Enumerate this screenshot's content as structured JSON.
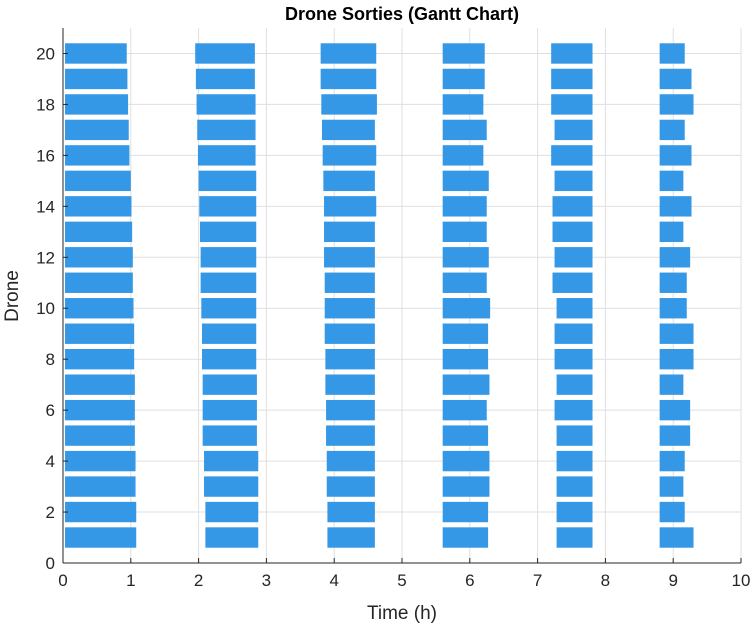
{
  "chart_data": {
    "type": "bar",
    "orientation": "horizontal-gantt",
    "title": "Drone Sorties (Gantt Chart)",
    "xlabel": "Time (h)",
    "ylabel": "Drone",
    "xlim": [
      0,
      10
    ],
    "ylim": [
      0,
      21
    ],
    "xticks": [
      0,
      1,
      2,
      3,
      4,
      5,
      6,
      7,
      8,
      9,
      10
    ],
    "yticks": [
      0,
      2,
      4,
      6,
      8,
      10,
      12,
      14,
      16,
      18,
      20
    ],
    "grid": true,
    "bar_color": "#3598e6",
    "drones": [
      {
        "drone": 1,
        "sorties": [
          [
            0.03,
            1.08
          ],
          [
            2.1,
            2.88
          ],
          [
            3.9,
            4.6
          ],
          [
            5.6,
            6.27
          ],
          [
            7.28,
            7.81
          ],
          [
            8.8,
            9.3
          ]
        ]
      },
      {
        "drone": 2,
        "sorties": [
          [
            0.03,
            1.08
          ],
          [
            2.1,
            2.88
          ],
          [
            3.9,
            4.6
          ],
          [
            5.6,
            6.27
          ],
          [
            7.28,
            7.81
          ],
          [
            8.8,
            9.17
          ]
        ]
      },
      {
        "drone": 3,
        "sorties": [
          [
            0.03,
            1.07
          ],
          [
            2.08,
            2.88
          ],
          [
            3.89,
            4.6
          ],
          [
            5.6,
            6.29
          ],
          [
            7.28,
            7.81
          ],
          [
            8.8,
            9.15
          ]
        ]
      },
      {
        "drone": 4,
        "sorties": [
          [
            0.03,
            1.07
          ],
          [
            2.08,
            2.88
          ],
          [
            3.89,
            4.6
          ],
          [
            5.6,
            6.29
          ],
          [
            7.28,
            7.81
          ],
          [
            8.8,
            9.17
          ]
        ]
      },
      {
        "drone": 5,
        "sorties": [
          [
            0.03,
            1.06
          ],
          [
            2.06,
            2.86
          ],
          [
            3.88,
            4.6
          ],
          [
            5.6,
            6.27
          ],
          [
            7.28,
            7.81
          ],
          [
            8.8,
            9.25
          ]
        ]
      },
      {
        "drone": 6,
        "sorties": [
          [
            0.03,
            1.06
          ],
          [
            2.06,
            2.86
          ],
          [
            3.88,
            4.6
          ],
          [
            5.6,
            6.25
          ],
          [
            7.25,
            7.81
          ],
          [
            8.8,
            9.25
          ]
        ]
      },
      {
        "drone": 7,
        "sorties": [
          [
            0.03,
            1.06
          ],
          [
            2.06,
            2.86
          ],
          [
            3.87,
            4.6
          ],
          [
            5.6,
            6.29
          ],
          [
            7.28,
            7.81
          ],
          [
            8.8,
            9.15
          ]
        ]
      },
      {
        "drone": 8,
        "sorties": [
          [
            0.03,
            1.05
          ],
          [
            2.05,
            2.85
          ],
          [
            3.87,
            4.6
          ],
          [
            5.6,
            6.27
          ],
          [
            7.25,
            7.81
          ],
          [
            8.8,
            9.3
          ]
        ]
      },
      {
        "drone": 9,
        "sorties": [
          [
            0.03,
            1.05
          ],
          [
            2.05,
            2.85
          ],
          [
            3.86,
            4.6
          ],
          [
            5.6,
            6.27
          ],
          [
            7.25,
            7.81
          ],
          [
            8.8,
            9.3
          ]
        ]
      },
      {
        "drone": 10,
        "sorties": [
          [
            0.03,
            1.04
          ],
          [
            2.04,
            2.85
          ],
          [
            3.86,
            4.6
          ],
          [
            5.6,
            6.3
          ],
          [
            7.28,
            7.81
          ],
          [
            8.8,
            9.2
          ]
        ]
      },
      {
        "drone": 11,
        "sorties": [
          [
            0.03,
            1.03
          ],
          [
            2.03,
            2.85
          ],
          [
            3.86,
            4.6
          ],
          [
            5.6,
            6.25
          ],
          [
            7.22,
            7.81
          ],
          [
            8.8,
            9.2
          ]
        ]
      },
      {
        "drone": 12,
        "sorties": [
          [
            0.03,
            1.03
          ],
          [
            2.03,
            2.85
          ],
          [
            3.85,
            4.6
          ],
          [
            5.6,
            6.28
          ],
          [
            7.25,
            7.81
          ],
          [
            8.8,
            9.25
          ]
        ]
      },
      {
        "drone": 13,
        "sorties": [
          [
            0.03,
            1.02
          ],
          [
            2.02,
            2.85
          ],
          [
            3.85,
            4.6
          ],
          [
            5.6,
            6.25
          ],
          [
            7.22,
            7.81
          ],
          [
            8.8,
            9.15
          ]
        ]
      },
      {
        "drone": 14,
        "sorties": [
          [
            0.03,
            1.01
          ],
          [
            2.01,
            2.85
          ],
          [
            3.85,
            4.62
          ],
          [
            5.6,
            6.25
          ],
          [
            7.22,
            7.81
          ],
          [
            8.8,
            9.27
          ]
        ]
      },
      {
        "drone": 15,
        "sorties": [
          [
            0.03,
            1.0
          ],
          [
            2.0,
            2.85
          ],
          [
            3.84,
            4.6
          ],
          [
            5.6,
            6.28
          ],
          [
            7.25,
            7.81
          ],
          [
            8.8,
            9.15
          ]
        ]
      },
      {
        "drone": 16,
        "sorties": [
          [
            0.03,
            0.98
          ],
          [
            1.99,
            2.84
          ],
          [
            3.83,
            4.62
          ],
          [
            5.6,
            6.2
          ],
          [
            7.2,
            7.81
          ],
          [
            8.8,
            9.27
          ]
        ]
      },
      {
        "drone": 17,
        "sorties": [
          [
            0.03,
            0.97
          ],
          [
            1.98,
            2.84
          ],
          [
            3.82,
            4.6
          ],
          [
            5.6,
            6.25
          ],
          [
            7.25,
            7.81
          ],
          [
            8.8,
            9.17
          ]
        ]
      },
      {
        "drone": 18,
        "sorties": [
          [
            0.03,
            0.96
          ],
          [
            1.97,
            2.84
          ],
          [
            3.81,
            4.63
          ],
          [
            5.6,
            6.2
          ],
          [
            7.2,
            7.81
          ],
          [
            8.8,
            9.3
          ]
        ]
      },
      {
        "drone": 19,
        "sorties": [
          [
            0.03,
            0.95
          ],
          [
            1.96,
            2.83
          ],
          [
            3.8,
            4.62
          ],
          [
            5.6,
            6.22
          ],
          [
            7.2,
            7.81
          ],
          [
            8.8,
            9.27
          ]
        ]
      },
      {
        "drone": 20,
        "sorties": [
          [
            0.03,
            0.94
          ],
          [
            1.95,
            2.83
          ],
          [
            3.8,
            4.62
          ],
          [
            5.6,
            6.22
          ],
          [
            7.2,
            7.81
          ],
          [
            8.8,
            9.17
          ]
        ]
      }
    ]
  }
}
